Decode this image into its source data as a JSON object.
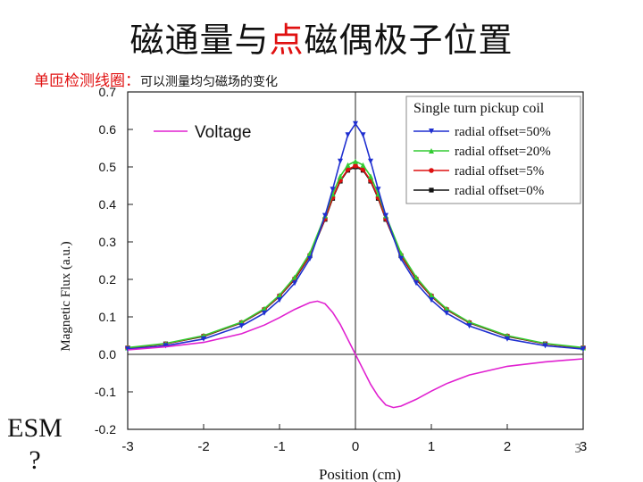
{
  "slide": {
    "title_part1": "磁通量与",
    "title_highlight": "点",
    "title_part2": "磁偶极子位置",
    "subtitle_red": "单匝检测线圈：",
    "subtitle_black": "可以测量均匀磁场的变化",
    "side_text_line1": "ESM",
    "side_text_line2": "?",
    "slide_number": "3"
  },
  "chart_data": {
    "type": "line",
    "xlabel": "Position (cm)",
    "ylabel": "Magnetic Flux (a.u.)",
    "xlim": [
      -3,
      3
    ],
    "ylim": [
      -0.2,
      0.7
    ],
    "xticks": [
      -3,
      -2,
      -1,
      0,
      1,
      2,
      3
    ],
    "yticks": [
      0.7,
      0.6,
      0.5,
      0.4,
      0.3,
      0.2,
      0.1,
      0.0,
      -0.1,
      -0.2
    ],
    "grid": false,
    "legend_title": "Single turn pickup coil",
    "legend_position": "top-right",
    "x": [
      -3,
      -2.5,
      -2,
      -1.5,
      -1.2,
      -1,
      -0.8,
      -0.6,
      -0.4,
      -0.3,
      -0.2,
      -0.1,
      0,
      0.1,
      0.2,
      0.3,
      0.4,
      0.6,
      0.8,
      1,
      1.2,
      1.5,
      2,
      2.5,
      3
    ],
    "series": [
      {
        "name": "radial offset=50%",
        "color": "#1f2fd0",
        "marker": "triangle-down",
        "values": [
          0.014,
          0.023,
          0.041,
          0.076,
          0.11,
          0.145,
          0.19,
          0.255,
          0.37,
          0.44,
          0.515,
          0.585,
          0.615,
          0.585,
          0.515,
          0.44,
          0.37,
          0.255,
          0.19,
          0.145,
          0.11,
          0.076,
          0.041,
          0.023,
          0.014
        ]
      },
      {
        "name": "radial offset=20%",
        "color": "#33cc33",
        "marker": "triangle-up",
        "values": [
          0.018,
          0.029,
          0.05,
          0.086,
          0.122,
          0.158,
          0.206,
          0.27,
          0.37,
          0.428,
          0.475,
          0.505,
          0.515,
          0.505,
          0.475,
          0.428,
          0.37,
          0.27,
          0.206,
          0.158,
          0.122,
          0.086,
          0.05,
          0.029,
          0.018
        ]
      },
      {
        "name": "radial offset=5%",
        "color": "#dd1111",
        "marker": "circle",
        "values": [
          0.017,
          0.028,
          0.049,
          0.085,
          0.12,
          0.156,
          0.202,
          0.265,
          0.362,
          0.418,
          0.464,
          0.493,
          0.503,
          0.493,
          0.464,
          0.418,
          0.362,
          0.265,
          0.202,
          0.156,
          0.12,
          0.085,
          0.049,
          0.028,
          0.017
        ]
      },
      {
        "name": "radial offset=0%",
        "color": "#111111",
        "marker": "square",
        "values": [
          0.017,
          0.028,
          0.048,
          0.084,
          0.119,
          0.155,
          0.2,
          0.263,
          0.36,
          0.416,
          0.462,
          0.491,
          0.5,
          0.491,
          0.462,
          0.416,
          0.36,
          0.263,
          0.2,
          0.155,
          0.119,
          0.084,
          0.048,
          0.028,
          0.017
        ]
      }
    ],
    "voltage": {
      "name": "Voltage",
      "color": "#e020d0",
      "x": [
        -3,
        -2.5,
        -2,
        -1.5,
        -1.2,
        -1,
        -0.8,
        -0.6,
        -0.5,
        -0.4,
        -0.3,
        -0.2,
        -0.1,
        0,
        0.1,
        0.2,
        0.3,
        0.4,
        0.5,
        0.6,
        0.8,
        1,
        1.2,
        1.5,
        2,
        2.5,
        3
      ],
      "values": [
        0.012,
        0.02,
        0.032,
        0.055,
        0.078,
        0.098,
        0.12,
        0.138,
        0.142,
        0.135,
        0.112,
        0.08,
        0.04,
        0.0,
        -0.04,
        -0.08,
        -0.112,
        -0.135,
        -0.142,
        -0.138,
        -0.12,
        -0.098,
        -0.078,
        -0.055,
        -0.032,
        -0.02,
        -0.012
      ]
    }
  }
}
